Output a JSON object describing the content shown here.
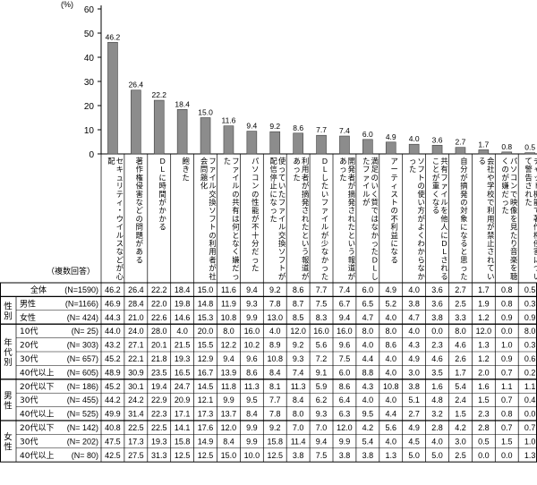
{
  "chart_data": {
    "type": "bar",
    "ylabel": "(%)",
    "ylim": [
      0,
      60
    ],
    "yticks": [
      "0",
      "10",
      "20",
      "30",
      "40",
      "50",
      "60"
    ],
    "categories": [
      "セキュリティ・ウイルスなどが心配",
      "著作権侵害などの問題がある",
      "DLに時間がかかる",
      "飽きた",
      "ファイル交換ソフトの利用者が社会問題化",
      "ファイルの共有は何となく嫌だった",
      "パソコンの性能が不十分だった",
      "使っていたファイル交換ソフトが配信停止になった",
      "利用者が摘発されたという報道があった",
      "DLしたいファイルが少なかった",
      "開発者が摘発されたという報道があった",
      "満足のいく質ではなかったDLしたファイルが",
      "アーティストの不利益になる",
      "ソフトの使い方がよくわからなかった",
      "共有ファイルを他人にDLされることが重くなる",
      "自分が摘発の対象になると思った",
      "会社や学校で利用が禁止されている",
      "パソコンで映像を見たり音楽を聴くのが嫌だった",
      "チャット機能で著作権侵害について警告された"
    ],
    "values": [
      46.2,
      26.4,
      22.2,
      18.4,
      15.0,
      11.6,
      9.4,
      9.2,
      8.6,
      7.7,
      7.4,
      6.0,
      4.9,
      4.0,
      3.6,
      2.7,
      1.7,
      0.8,
      0.5
    ],
    "table": {
      "header_label": "（複数回答）",
      "groups": [
        {
          "label": "",
          "rows": [
            {
              "name": "全体",
              "n": "(N=1590)",
              "vals": [
                "46.2",
                "26.4",
                "22.2",
                "18.4",
                "15.0",
                "11.6",
                "9.4",
                "9.2",
                "8.6",
                "7.7",
                "7.4",
                "6.0",
                "4.9",
                "4.0",
                "3.6",
                "2.7",
                "1.7",
                "0.8",
                "0.5"
              ]
            }
          ]
        },
        {
          "label": "性別",
          "rows": [
            {
              "name": "男性",
              "n": "(N=1166)",
              "vals": [
                "46.9",
                "28.4",
                "22.0",
                "19.8",
                "14.8",
                "11.9",
                "9.3",
                "7.8",
                "8.7",
                "7.5",
                "6.7",
                "6.5",
                "5.2",
                "3.8",
                "3.6",
                "2.5",
                "1.9",
                "0.8",
                "0.3"
              ]
            },
            {
              "name": "女性",
              "n": "(N= 424)",
              "vals": [
                "44.3",
                "21.0",
                "22.6",
                "14.6",
                "15.3",
                "10.8",
                "9.9",
                "13.0",
                "8.5",
                "8.3",
                "9.4",
                "4.7",
                "4.0",
                "4.7",
                "3.8",
                "3.3",
                "1.2",
                "0.9",
                "0.9"
              ]
            }
          ]
        },
        {
          "label": "年代別",
          "rows": [
            {
              "name": "10代",
              "n": "(N=  25)",
              "vals": [
                "44.0",
                "24.0",
                "28.0",
                "4.0",
                "20.0",
                "8.0",
                "16.0",
                "4.0",
                "12.0",
                "16.0",
                "16.0",
                "8.0",
                "8.0",
                "4.0",
                "0.0",
                "8.0",
                "12.0",
                "0.0",
                "8.0"
              ]
            },
            {
              "name": "20代",
              "n": "(N= 303)",
              "vals": [
                "43.2",
                "27.1",
                "20.1",
                "21.5",
                "15.5",
                "12.2",
                "10.2",
                "8.9",
                "9.2",
                "5.6",
                "9.6",
                "4.0",
                "8.6",
                "4.3",
                "2.3",
                "4.6",
                "1.3",
                "1.0",
                "0.3"
              ]
            },
            {
              "name": "30代",
              "n": "(N= 657)",
              "vals": [
                "45.2",
                "22.1",
                "21.8",
                "19.3",
                "12.9",
                "9.4",
                "9.6",
                "10.8",
                "9.3",
                "7.2",
                "7.5",
                "4.4",
                "4.0",
                "4.9",
                "4.6",
                "2.6",
                "1.2",
                "0.9",
                "0.6"
              ]
            },
            {
              "name": "40代以上",
              "n": "(N= 605)",
              "vals": [
                "48.9",
                "30.9",
                "23.5",
                "16.5",
                "16.7",
                "13.9",
                "8.6",
                "8.4",
                "7.4",
                "9.1",
                "6.0",
                "8.8",
                "4.0",
                "3.0",
                "3.5",
                "1.7",
                "2.0",
                "0.7",
                "0.2"
              ]
            }
          ]
        },
        {
          "label": "男性",
          "rows": [
            {
              "name": "20代以下",
              "n": "(N= 186)",
              "vals": [
                "45.2",
                "30.1",
                "19.4",
                "24.7",
                "14.5",
                "11.8",
                "11.3",
                "8.1",
                "11.3",
                "5.9",
                "8.6",
                "4.3",
                "10.8",
                "3.8",
                "1.6",
                "5.4",
                "1.6",
                "1.1",
                "1.1"
              ]
            },
            {
              "name": "30代",
              "n": "(N= 455)",
              "vals": [
                "44.2",
                "24.2",
                "22.9",
                "20.9",
                "12.1",
                "9.9",
                "9.5",
                "7.7",
                "8.4",
                "6.2",
                "6.4",
                "4.0",
                "4.0",
                "5.1",
                "4.8",
                "2.4",
                "1.5",
                "0.7",
                "0.4"
              ]
            },
            {
              "name": "40代以上",
              "n": "(N= 525)",
              "vals": [
                "49.9",
                "31.4",
                "22.3",
                "17.1",
                "17.3",
                "13.7",
                "8.4",
                "7.8",
                "8.0",
                "9.3",
                "6.3",
                "9.5",
                "4.4",
                "2.7",
                "3.2",
                "1.5",
                "2.3",
                "0.8",
                "0.0"
              ]
            }
          ]
        },
        {
          "label": "女性",
          "rows": [
            {
              "name": "20代以下",
              "n": "(N= 142)",
              "vals": [
                "40.8",
                "22.5",
                "22.5",
                "14.1",
                "17.6",
                "12.0",
                "9.9",
                "9.2",
                "7.0",
                "7.0",
                "12.0",
                "4.2",
                "5.6",
                "4.9",
                "2.8",
                "4.2",
                "2.8",
                "0.7",
                "0.7"
              ]
            },
            {
              "name": "30代",
              "n": "(N= 202)",
              "vals": [
                "47.5",
                "17.3",
                "19.3",
                "15.8",
                "14.9",
                "8.4",
                "9.9",
                "15.8",
                "11.4",
                "9.4",
                "9.9",
                "5.4",
                "4.0",
                "4.5",
                "4.0",
                "3.0",
                "0.5",
                "1.5",
                "1.0"
              ]
            },
            {
              "name": "40代以上",
              "n": "(N=  80)",
              "vals": [
                "42.5",
                "27.5",
                "31.3",
                "12.5",
                "12.5",
                "15.0",
                "10.0",
                "12.5",
                "3.8",
                "7.5",
                "3.8",
                "3.8",
                "1.3",
                "5.0",
                "5.0",
                "2.5",
                "0.0",
                "0.0",
                "1.3"
              ]
            }
          ]
        }
      ]
    }
  }
}
